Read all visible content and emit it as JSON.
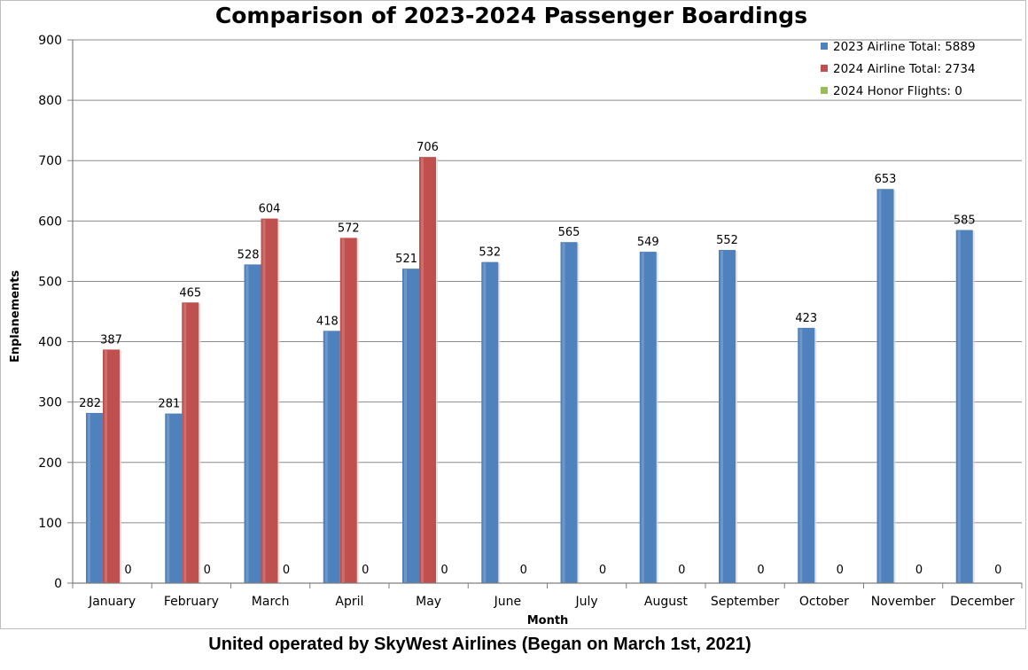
{
  "footer": "United operated by SkyWest Airlines (Began on March 1st, 2021)",
  "chart_data": {
    "type": "bar",
    "title": "Comparison of 2023-2024 Passenger Boardings",
    "xlabel": "Month",
    "ylabel": "Enplanements",
    "ylim": [
      0,
      900
    ],
    "yticks": [
      0,
      100,
      200,
      300,
      400,
      500,
      600,
      700,
      800,
      900
    ],
    "grid": true,
    "legend_position": "top-right",
    "categories": [
      "January",
      "February",
      "March",
      "April",
      "May",
      "June",
      "July",
      "August",
      "September",
      "October",
      "November",
      "December"
    ],
    "series": [
      {
        "name": "2023 Airline Total: 5889",
        "color": "#4f81bd",
        "values": [
          282,
          281,
          528,
          418,
          521,
          532,
          565,
          549,
          552,
          423,
          653,
          585
        ]
      },
      {
        "name": "2024 Airline Total: 2734",
        "color": "#c0504d",
        "values": [
          387,
          465,
          604,
          572,
          706,
          null,
          null,
          null,
          null,
          null,
          null,
          null
        ]
      },
      {
        "name": "2024 Honor Flights: 0",
        "color": "#9bbb59",
        "values": [
          0,
          0,
          0,
          0,
          0,
          0,
          0,
          0,
          0,
          0,
          0,
          0
        ]
      }
    ]
  }
}
